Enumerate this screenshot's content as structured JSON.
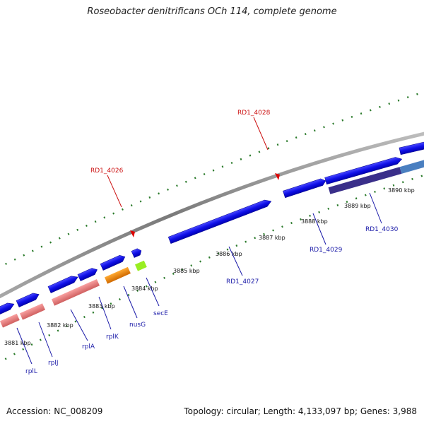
{
  "title": "Roseobacter denitrificans OCh 114, complete genome",
  "footer": {
    "accession": "Accession: NC_008209",
    "summary": "Topology: circular; Length: 4,133,097 bp; Genes: 3,988"
  },
  "colors": {
    "gene_blue": "#1010e8",
    "rrna_pink": "#f08080",
    "orange": "#ff8800",
    "lime": "#99ee22",
    "purple": "#3a2f8a",
    "steel": "#4a7fc0",
    "tick_green": "#2a7a2a",
    "backbone": "#888888",
    "label_blue": "#1a1aa8",
    "label_red": "#cc1111"
  },
  "kbp_labels": [
    "3881 kbp",
    "3882 kbp",
    "3883 kbp",
    "3884 kbp",
    "3885 kbp",
    "3886 kbp",
    "3887 kbp",
    "3888 kbp",
    "3889 kbp",
    "3890 kbp"
  ],
  "gene_labels": {
    "rplL": "rplL",
    "rplJ": "rplJ",
    "rplA": "rplA",
    "rplK": "rplK",
    "nusG": "nusG",
    "secE": "secE",
    "rd4027": "RD1_4027",
    "rd4029": "RD1_4029",
    "rd4030": "RD1_4030",
    "rd4026": "RD1_4026",
    "rd4028": "RD1_4028"
  }
}
